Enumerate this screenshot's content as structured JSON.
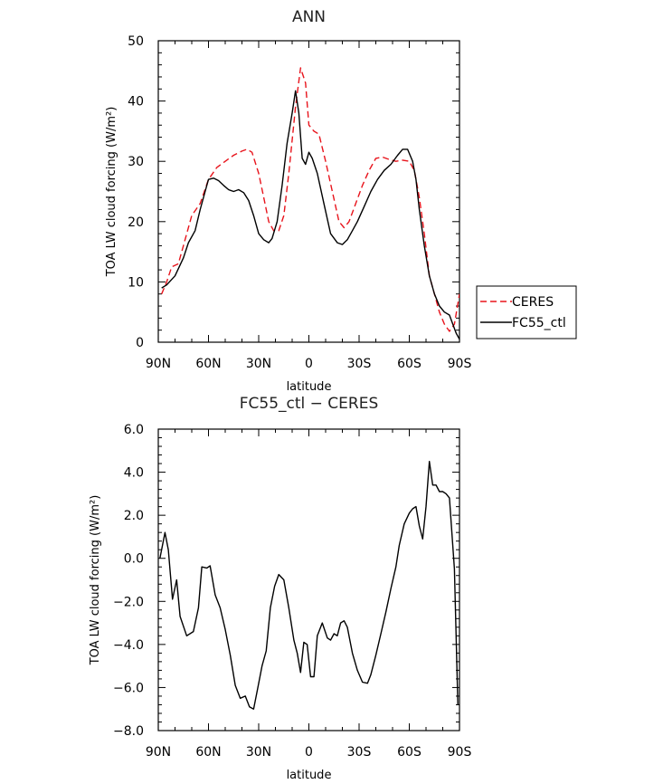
{
  "chart_data": [
    {
      "type": "line",
      "title": "ANN",
      "xlabel": "latitude",
      "ylabel": "TOA LW cloud forcing (W/m²)",
      "xlim": [
        90,
        -90
      ],
      "ylim": [
        0,
        50
      ],
      "x_tick_values": [
        90,
        60,
        30,
        0,
        -30,
        -60,
        -90
      ],
      "x_tick_labels": [
        "90N",
        "60N",
        "30N",
        "0",
        "30S",
        "60S",
        "90S"
      ],
      "y_tick_values": [
        0,
        10,
        20,
        30,
        40,
        50
      ],
      "y_tick_labels": [
        "0",
        "10",
        "20",
        "30",
        "40",
        "50"
      ],
      "legend": {
        "position": "right",
        "entries": [
          "CERES",
          "FC55_ctl"
        ]
      },
      "series": [
        {
          "name": "CERES",
          "color": "#e8141c",
          "dash": "dashed",
          "x": [
            88,
            85,
            82,
            78,
            74,
            70,
            65,
            60,
            55,
            50,
            45,
            40,
            37,
            34,
            30,
            27,
            24,
            21,
            18,
            15,
            12,
            8,
            5,
            2,
            0,
            -3,
            -6,
            -10,
            -14,
            -18,
            -21,
            -24,
            -28,
            -32,
            -36,
            -40,
            -44,
            -48,
            -52,
            -56,
            -60,
            -63,
            -66,
            -69,
            -72,
            -75,
            -78,
            -81,
            -84,
            -87,
            -90
          ],
          "y": [
            8,
            10,
            12.5,
            13,
            17,
            21,
            23,
            27,
            29,
            30,
            31,
            31.7,
            32,
            31.5,
            28,
            24,
            20,
            18.5,
            18.5,
            21,
            28,
            39,
            45.5,
            43,
            36,
            35,
            34.5,
            30,
            25,
            20,
            19,
            20,
            23,
            26,
            28.5,
            30.5,
            30.7,
            30.3,
            30,
            30.2,
            30,
            28.5,
            24,
            18,
            11,
            8,
            5,
            3,
            1.8,
            3,
            8
          ]
        },
        {
          "name": "FC55_ctl",
          "color": "#000000",
          "dash": "solid",
          "x": [
            88,
            85,
            80,
            75,
            72,
            68,
            65,
            62,
            60,
            57,
            54,
            51,
            48,
            45,
            42,
            39,
            36,
            33,
            30,
            27,
            24,
            22,
            19,
            16,
            13,
            10,
            8,
            6,
            4,
            2,
            0,
            -2,
            -5,
            -9,
            -13,
            -17,
            -20,
            -23,
            -26,
            -29,
            -33,
            -37,
            -41,
            -45,
            -49,
            -53,
            -56,
            -59,
            -62,
            -64,
            -66,
            -69,
            -72,
            -75,
            -78,
            -81,
            -84,
            -86,
            -88,
            -90
          ],
          "y": [
            9,
            9.5,
            11,
            14,
            16.5,
            18.5,
            22,
            25,
            27,
            27.2,
            26.8,
            26,
            25.3,
            25,
            25.3,
            24.8,
            23.5,
            21,
            18,
            17,
            16.5,
            17.2,
            20,
            26,
            33,
            38,
            41.7,
            38,
            30.5,
            29.5,
            31.5,
            30.5,
            28,
            23,
            18,
            16.5,
            16.2,
            17,
            18.5,
            20,
            22.5,
            25,
            27,
            28.5,
            29.5,
            31,
            32,
            32,
            30,
            27,
            22,
            16,
            11,
            8,
            6,
            5,
            4.5,
            3,
            1.5,
            0.5
          ]
        }
      ]
    },
    {
      "type": "line",
      "title": "FC55_ctl − CERES",
      "xlabel": "latitude",
      "ylabel": "TOA LW cloud forcing (W/m²)",
      "xlim": [
        90,
        -90
      ],
      "ylim": [
        -8,
        6
      ],
      "x_tick_values": [
        90,
        60,
        30,
        0,
        -30,
        -60,
        -90
      ],
      "x_tick_labels": [
        "90N",
        "60N",
        "30N",
        "0",
        "30S",
        "60S",
        "90S"
      ],
      "y_tick_values": [
        -8,
        -6,
        -4,
        -2,
        0,
        2,
        4,
        6
      ],
      "y_tick_labels": [
        "−8.0",
        "−6.0",
        "−4.0",
        "−2.0",
        "0.0",
        "2.0",
        "4.0",
        "6.0"
      ],
      "series": [
        {
          "color": "#000000",
          "dash": "solid",
          "x": [
            89,
            86,
            84,
            81.5,
            79,
            77,
            73,
            69,
            66,
            64,
            61,
            59,
            56,
            53,
            50,
            47,
            44,
            41,
            38,
            35.5,
            33,
            30.5,
            28,
            25.5,
            23,
            20.5,
            18,
            15,
            12,
            9,
            7,
            5,
            3,
            1,
            -1,
            -3,
            -5,
            -8,
            -11,
            -13,
            -15,
            -17,
            -19,
            -21,
            -23,
            -26,
            -29,
            -32,
            -35,
            -37,
            -40,
            -43,
            -46,
            -49,
            -52,
            -54,
            -57,
            -60,
            -62,
            -64,
            -66,
            -68,
            -70,
            -72,
            -74,
            -76,
            -78,
            -80,
            -82,
            -84,
            -87,
            -89
          ],
          "y": [
            0,
            1.2,
            0.4,
            -1.9,
            -1.0,
            -2.7,
            -3.6,
            -3.4,
            -2.3,
            -0.4,
            -0.45,
            -0.35,
            -1.7,
            -2.3,
            -3.3,
            -4.5,
            -5.9,
            -6.5,
            -6.4,
            -6.9,
            -7.0,
            -6.0,
            -5.0,
            -4.3,
            -2.3,
            -1.3,
            -0.75,
            -1.0,
            -2.3,
            -3.8,
            -4.4,
            -5.3,
            -3.9,
            -4.0,
            -5.5,
            -5.5,
            -3.6,
            -3.0,
            -3.7,
            -3.8,
            -3.5,
            -3.6,
            -3.0,
            -2.9,
            -3.2,
            -4.4,
            -5.2,
            -5.75,
            -5.8,
            -5.4,
            -4.5,
            -3.5,
            -2.5,
            -1.4,
            -0.4,
            0.6,
            1.6,
            2.1,
            2.3,
            2.4,
            1.5,
            0.9,
            2.4,
            4.5,
            3.4,
            3.4,
            3.1,
            3.1,
            3.0,
            2.8,
            -0.5,
            -6.8
          ]
        }
      ]
    }
  ]
}
